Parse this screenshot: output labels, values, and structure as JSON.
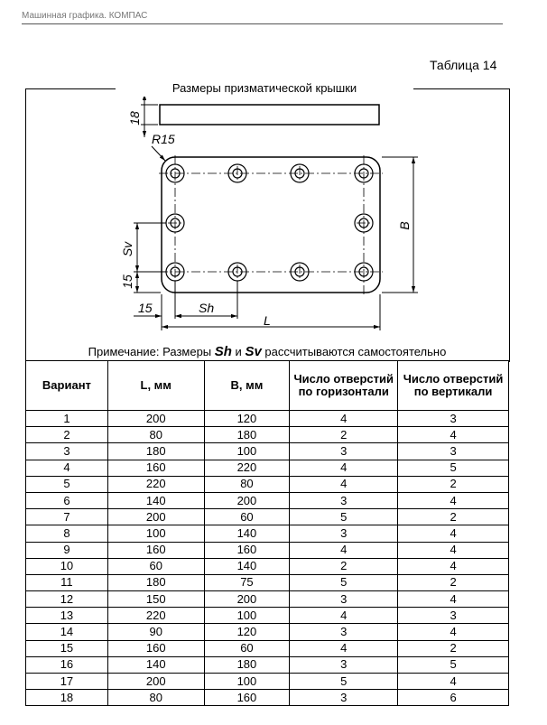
{
  "header": {
    "text": "Машинная графика. КОМПАС"
  },
  "table_number": "Таблица 14",
  "box_title": "Размеры призматической крышки",
  "drawing": {
    "labels": {
      "thickness": "18",
      "radius": "R15",
      "sv": "Sv",
      "edge_v": "15",
      "edge_h": "15",
      "sh": "Sh",
      "length": "L",
      "width": "B"
    }
  },
  "note": {
    "prefix": "Примечание: Размеры ",
    "sh": "Sh",
    "and": " и ",
    "sv": "Sv",
    "suffix": " рассчитываются самостоятельно"
  },
  "table": {
    "headers": [
      "Вариант",
      "L, мм",
      "B, мм",
      "Число отверстий по горизонтали",
      "Число отверстий по вертикали"
    ],
    "rows": [
      [
        "1",
        "200",
        "120",
        "4",
        "3"
      ],
      [
        "2",
        "80",
        "180",
        "2",
        "4"
      ],
      [
        "3",
        "180",
        "100",
        "3",
        "3"
      ],
      [
        "4",
        "160",
        "220",
        "4",
        "5"
      ],
      [
        "5",
        "220",
        "80",
        "4",
        "2"
      ],
      [
        "6",
        "140",
        "200",
        "3",
        "4"
      ],
      [
        "7",
        "200",
        "60",
        "5",
        "2"
      ],
      [
        "8",
        "100",
        "140",
        "3",
        "4"
      ],
      [
        "9",
        "160",
        "160",
        "4",
        "4"
      ],
      [
        "10",
        "60",
        "140",
        "2",
        "4"
      ],
      [
        "11",
        "180",
        "75",
        "5",
        "2"
      ],
      [
        "12",
        "150",
        "200",
        "3",
        "4"
      ],
      [
        "13",
        "220",
        "100",
        "4",
        "3"
      ],
      [
        "14",
        "90",
        "120",
        "3",
        "4"
      ],
      [
        "15",
        "160",
        "60",
        "4",
        "2"
      ],
      [
        "16",
        "140",
        "180",
        "3",
        "5"
      ],
      [
        "17",
        "200",
        "100",
        "5",
        "4"
      ],
      [
        "18",
        "80",
        "160",
        "3",
        "6"
      ]
    ]
  }
}
